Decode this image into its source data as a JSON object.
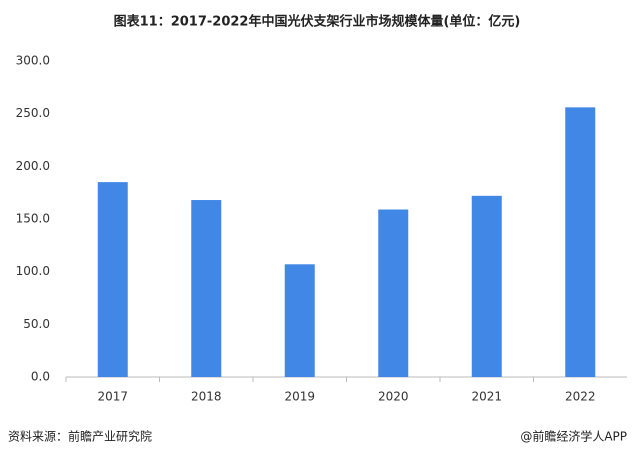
{
  "chart_data": {
    "type": "bar",
    "title": "图表11：2017-2022年中国光伏支架行业市场规模体量(单位：亿元)",
    "categories": [
      "2017",
      "2018",
      "2019",
      "2020",
      "2021",
      "2022"
    ],
    "values": [
      185,
      168,
      107,
      159,
      172,
      256
    ],
    "color": "#4187e5",
    "ylim": [
      0,
      300
    ],
    "yticks": [
      {
        "value": 0,
        "label": "0.0"
      },
      {
        "value": 50,
        "label": "50.0"
      },
      {
        "value": 100,
        "label": "100.0"
      },
      {
        "value": 150,
        "label": "150.0"
      },
      {
        "value": 200,
        "label": "200.0"
      },
      {
        "value": 250,
        "label": "250.0"
      },
      {
        "value": 300,
        "label": "300.0"
      }
    ],
    "grid": false
  },
  "footer": {
    "source": "资料来源：前瞻产业研究院",
    "brand": "@前瞻经济学人APP"
  }
}
